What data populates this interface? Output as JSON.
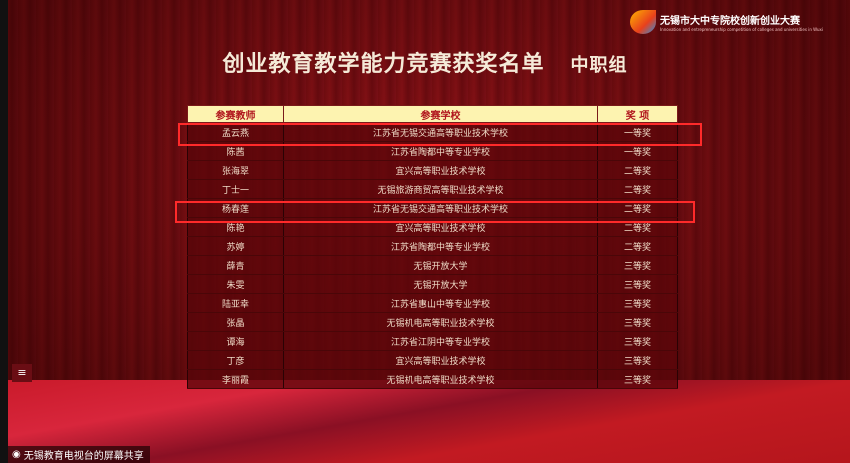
{
  "title": "创业教育教学能力竞赛获奖名单",
  "subtitle": "中职组",
  "logo": {
    "name": "无锡市大中专院校创新创业大赛",
    "en": "Innovation and entrepreneurship competition of colleges and universities in Wuxi"
  },
  "table": {
    "headers": [
      "参赛教师",
      "参赛学校",
      "奖 项"
    ],
    "rows": [
      [
        "孟云燕",
        "江苏省无锡交通高等职业技术学校",
        "一等奖"
      ],
      [
        "陈茜",
        "江苏省陶都中等专业学校",
        "一等奖"
      ],
      [
        "张海翠",
        "宜兴高等职业技术学校",
        "二等奖"
      ],
      [
        "丁士一",
        "无锡旅游商贸高等职业技术学校",
        "二等奖"
      ],
      [
        "杨春莲",
        "江苏省无锡交通高等职业技术学校",
        "二等奖"
      ],
      [
        "陈艳",
        "宜兴高等职业技术学校",
        "二等奖"
      ],
      [
        "苏婷",
        "江苏省陶都中等专业学校",
        "二等奖"
      ],
      [
        "薛青",
        "无锡开放大学",
        "三等奖"
      ],
      [
        "朱雯",
        "无锡开放大学",
        "三等奖"
      ],
      [
        "陆亚幸",
        "江苏省惠山中等专业学校",
        "三等奖"
      ],
      [
        "张晶",
        "无锡机电高等职业技术学校",
        "三等奖"
      ],
      [
        "谭海",
        "江苏省江阴中等专业学校",
        "三等奖"
      ],
      [
        "丁彦",
        "宜兴高等职业技术学校",
        "三等奖"
      ],
      [
        "李丽霞",
        "无锡机电高等职业技术学校",
        "三等奖"
      ]
    ]
  },
  "menu_icon": "≡",
  "share_bar": {
    "icon": "screen-share-icon",
    "label": "无锡教育电视台的屏幕共享"
  },
  "colors": {
    "highlight": "#ff2a2a",
    "header_bg": "#fdf3b0"
  }
}
